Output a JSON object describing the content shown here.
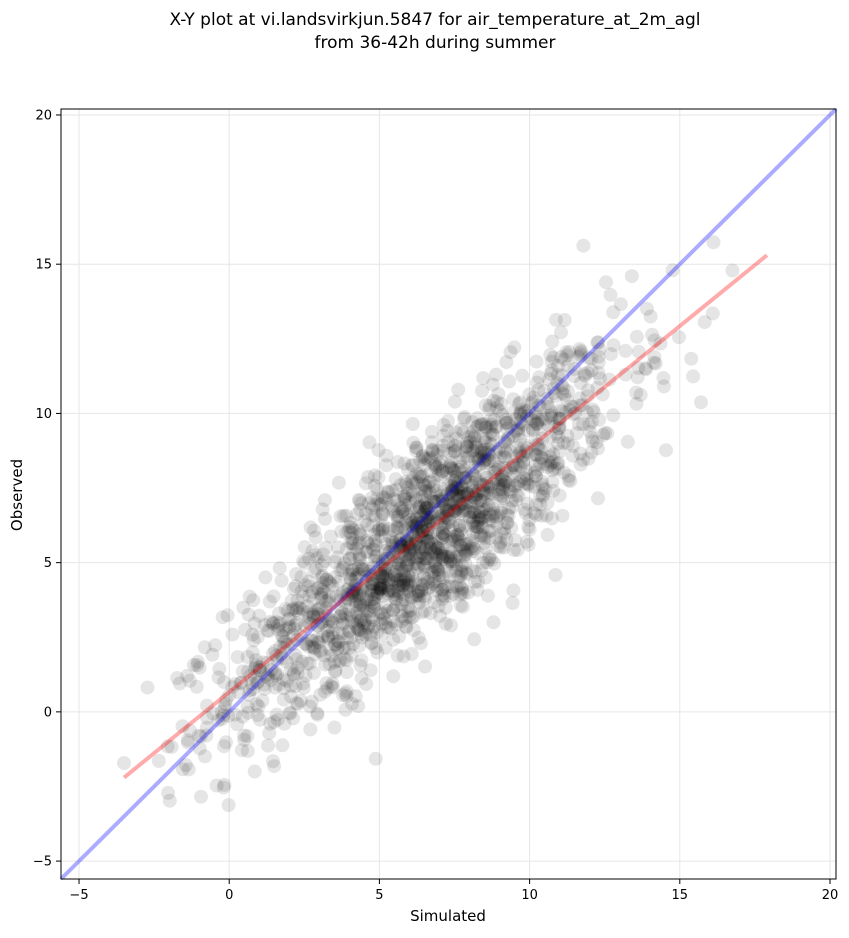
{
  "chart_data": {
    "type": "scatter",
    "title": "X-Y plot at vi.landsvirkjun.5847 for air_temperature_at_2m_agl",
    "subtitle": "from 36-42h during summer",
    "xlabel": "Simulated",
    "ylabel": "Observed",
    "xlim": [
      -5.6,
      20.2
    ],
    "ylim": [
      -5.6,
      20.2
    ],
    "xticks": [
      -5,
      0,
      5,
      10,
      15,
      20
    ],
    "yticks": [
      -5,
      0,
      5,
      10,
      15,
      20
    ],
    "grid": true,
    "point_color": "#000000",
    "point_alpha": 0.1,
    "point_cloud": {
      "n_points": 1800,
      "x_range": [
        -3.6,
        17.9
      ],
      "x_center": 6.5,
      "y_fit_slope": 0.8,
      "y_fit_intercept": 0.7,
      "residual_sd": 1.6
    },
    "lines": [
      {
        "name": "",
        "color": "#0000ff",
        "x": [
          -5.6,
          20.2
        ],
        "y": [
          -5.6,
          20.2
        ]
      },
      {
        "name": "",
        "color": "#ff0000",
        "x": [
          -3.5,
          17.9
        ],
        "y": [
          -2.2,
          15.3
        ]
      }
    ]
  }
}
